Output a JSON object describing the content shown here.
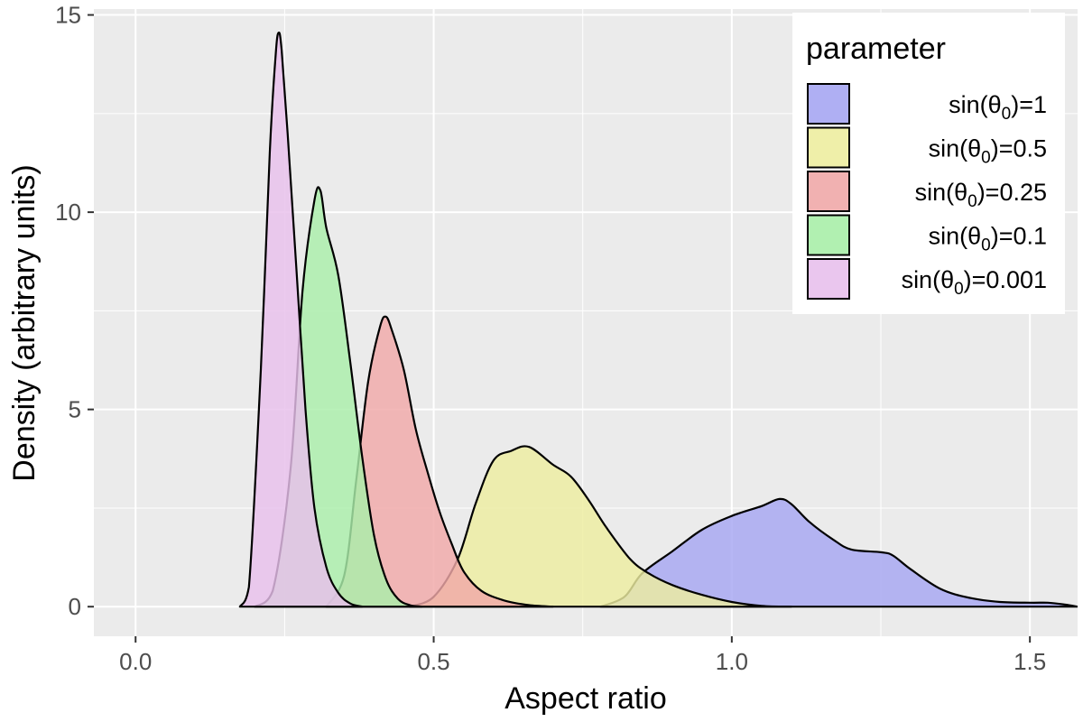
{
  "chart_data": {
    "type": "area",
    "xlabel": "Aspect ratio",
    "ylabel": "Density (arbitrary units)",
    "xlim": [
      -0.07,
      1.58
    ],
    "ylim": [
      -0.75,
      15.15
    ],
    "x_ticks": [
      0.0,
      0.5,
      1.0,
      1.5
    ],
    "x_tick_labels": [
      "0.0",
      "0.5",
      "1.0",
      "1.5"
    ],
    "y_ticks": [
      0,
      5,
      10,
      15
    ],
    "y_tick_labels": [
      "0",
      "5",
      "10",
      "15"
    ],
    "grid": true,
    "legend": {
      "title": "parameter",
      "placement": "top-right"
    },
    "series": [
      {
        "name": "sin(θ0)=1",
        "label_main": "sin(θ",
        "label_sub": "0",
        "label_tail": ")=1",
        "color": "#a6a6f2",
        "points": [
          [
            0.78,
            0.0
          ],
          [
            0.82,
            0.25
          ],
          [
            0.85,
            0.85
          ],
          [
            0.9,
            1.4
          ],
          [
            0.95,
            1.95
          ],
          [
            1.0,
            2.3
          ],
          [
            1.05,
            2.55
          ],
          [
            1.08,
            2.73
          ],
          [
            1.1,
            2.6
          ],
          [
            1.13,
            2.15
          ],
          [
            1.17,
            1.7
          ],
          [
            1.2,
            1.45
          ],
          [
            1.25,
            1.38
          ],
          [
            1.27,
            1.3
          ],
          [
            1.3,
            0.95
          ],
          [
            1.35,
            0.45
          ],
          [
            1.4,
            0.22
          ],
          [
            1.45,
            0.12
          ],
          [
            1.5,
            0.1
          ],
          [
            1.53,
            0.1
          ],
          [
            1.56,
            0.05
          ],
          [
            1.58,
            0.0
          ]
        ]
      },
      {
        "name": "sin(θ0)=0.5",
        "label_main": "sin(θ",
        "label_sub": "0",
        "label_tail": ")=0.5",
        "color": "#ededa0",
        "points": [
          [
            0.46,
            0.0
          ],
          [
            0.5,
            0.25
          ],
          [
            0.54,
            1.2
          ],
          [
            0.57,
            2.6
          ],
          [
            0.6,
            3.7
          ],
          [
            0.63,
            3.95
          ],
          [
            0.66,
            4.05
          ],
          [
            0.7,
            3.6
          ],
          [
            0.73,
            3.3
          ],
          [
            0.76,
            2.7
          ],
          [
            0.79,
            2.0
          ],
          [
            0.83,
            1.2
          ],
          [
            0.86,
            0.85
          ],
          [
            0.9,
            0.55
          ],
          [
            0.95,
            0.3
          ],
          [
            1.0,
            0.12
          ],
          [
            1.05,
            0.02
          ],
          [
            1.1,
            0.0
          ]
        ]
      },
      {
        "name": "sin(θ0)=0.25",
        "label_main": "sin(θ",
        "label_sub": "0",
        "label_tail": ")=0.25",
        "color": "#f0a8a8",
        "points": [
          [
            0.32,
            0.0
          ],
          [
            0.35,
            0.8
          ],
          [
            0.37,
            3.2
          ],
          [
            0.39,
            5.7
          ],
          [
            0.41,
            7.1
          ],
          [
            0.42,
            7.35
          ],
          [
            0.43,
            7.0
          ],
          [
            0.45,
            6.0
          ],
          [
            0.47,
            4.5
          ],
          [
            0.49,
            3.4
          ],
          [
            0.51,
            2.4
          ],
          [
            0.53,
            1.6
          ],
          [
            0.55,
            0.9
          ],
          [
            0.58,
            0.4
          ],
          [
            0.62,
            0.15
          ],
          [
            0.66,
            0.04
          ],
          [
            0.7,
            0.0
          ]
        ]
      },
      {
        "name": "sin(θ0)=0.1",
        "label_main": "sin(θ",
        "label_sub": "0",
        "label_tail": ")=0.1",
        "color": "#a9eea9",
        "points": [
          [
            0.2,
            0.0
          ],
          [
            0.23,
            0.4
          ],
          [
            0.26,
            3.5
          ],
          [
            0.28,
            8.0
          ],
          [
            0.3,
            10.3
          ],
          [
            0.31,
            10.55
          ],
          [
            0.32,
            9.6
          ],
          [
            0.34,
            8.4
          ],
          [
            0.36,
            6.2
          ],
          [
            0.38,
            3.8
          ],
          [
            0.4,
            1.8
          ],
          [
            0.42,
            0.7
          ],
          [
            0.44,
            0.2
          ],
          [
            0.46,
            0.04
          ],
          [
            0.48,
            0.0
          ]
        ]
      },
      {
        "name": "sin(θ0)=0.001",
        "label_main": "sin(θ",
        "label_sub": "0",
        "label_tail": ")=0.001",
        "color": "#e8c0ec",
        "points": [
          [
            0.175,
            0.0
          ],
          [
            0.19,
            0.5
          ],
          [
            0.21,
            6.0
          ],
          [
            0.225,
            11.5
          ],
          [
            0.235,
            14.0
          ],
          [
            0.24,
            14.55
          ],
          [
            0.245,
            14.1
          ],
          [
            0.255,
            12.0
          ],
          [
            0.27,
            8.5
          ],
          [
            0.285,
            5.0
          ],
          [
            0.3,
            2.5
          ],
          [
            0.32,
            1.0
          ],
          [
            0.34,
            0.35
          ],
          [
            0.36,
            0.08
          ],
          [
            0.38,
            0.0
          ]
        ]
      }
    ]
  }
}
